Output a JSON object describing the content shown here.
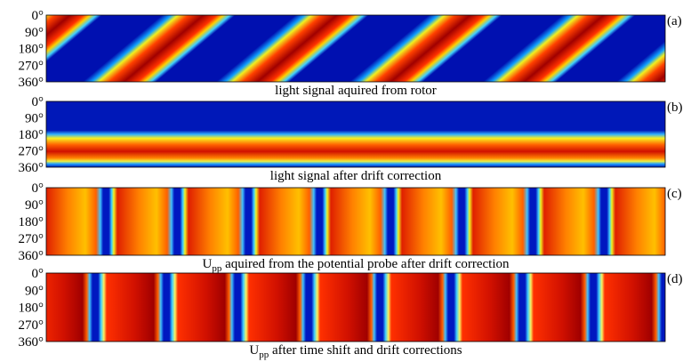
{
  "yticks": [
    {
      "value": 0,
      "label": "0°"
    },
    {
      "value": 90,
      "label": "90°"
    },
    {
      "value": 180,
      "label": "180°"
    },
    {
      "value": 270,
      "label": "270°"
    },
    {
      "value": 360,
      "label": "360°"
    }
  ],
  "ylim": [
    0,
    360
  ],
  "panels": [
    {
      "label": "(a)",
      "caption": "light signal aquired from rotor"
    },
    {
      "label": "(b)",
      "caption": "light signal after drift correction"
    },
    {
      "label": "(c)",
      "caption_symbol": "U",
      "caption_sub": "pp",
      "caption": " aquired from the potential probe after drift correction"
    },
    {
      "label": "(d)",
      "caption_symbol": "U",
      "caption_sub": "pp",
      "caption": " after time shift and drift corrections"
    }
  ]
}
